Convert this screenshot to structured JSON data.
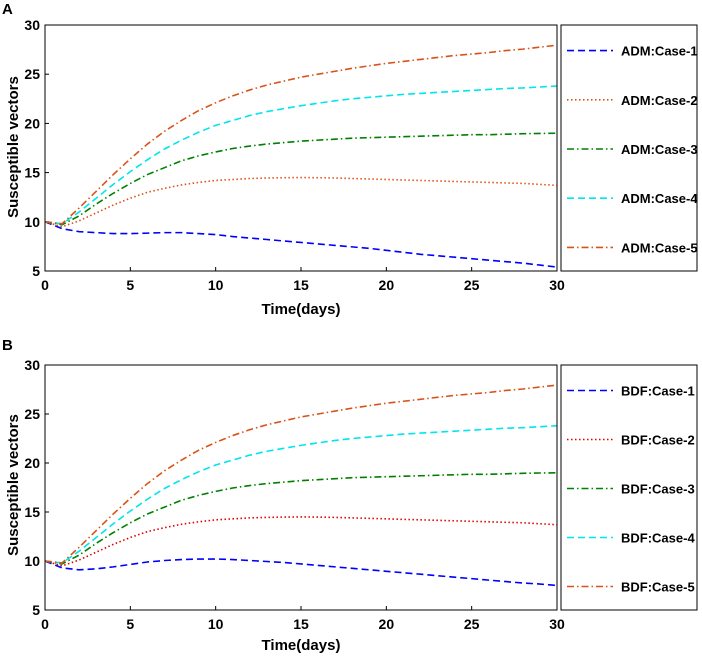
{
  "chart_data": [
    {
      "type": "line",
      "panel": "A",
      "xlabel": "Time(days)",
      "ylabel": "Susceptible vectors",
      "xlim": [
        0,
        30
      ],
      "ylim": [
        5,
        30
      ],
      "xticks": [
        "0",
        "5",
        "10",
        "15",
        "20",
        "25",
        "30"
      ],
      "yticks": [
        "5",
        "10",
        "15",
        "20",
        "25",
        "30"
      ],
      "legend_position": "right",
      "x": [
        0,
        1,
        2,
        3,
        4,
        5,
        6,
        7,
        8,
        9,
        10,
        11,
        12,
        13,
        14,
        15,
        16,
        17,
        18,
        19,
        20,
        21,
        22,
        23,
        24,
        25,
        26,
        27,
        28,
        29,
        30
      ],
      "series": [
        {
          "name": "ADM:Case-1",
          "color": "#0000ff",
          "dash": "dashed",
          "values": [
            10,
            9.3,
            9.0,
            8.9,
            8.8,
            8.8,
            8.85,
            8.9,
            8.9,
            8.8,
            8.7,
            8.5,
            8.35,
            8.2,
            8.05,
            7.9,
            7.75,
            7.6,
            7.45,
            7.3,
            7.1,
            6.9,
            6.7,
            6.55,
            6.4,
            6.25,
            6.1,
            5.95,
            5.8,
            5.6,
            5.4
          ]
        },
        {
          "name": "ADM:Case-2",
          "color": "#d95319",
          "dash": "dotted",
          "values": [
            10,
            9.5,
            10.1,
            10.9,
            11.7,
            12.4,
            13.0,
            13.4,
            13.75,
            14.0,
            14.2,
            14.3,
            14.4,
            14.45,
            14.48,
            14.5,
            14.48,
            14.45,
            14.4,
            14.35,
            14.3,
            14.25,
            14.2,
            14.15,
            14.1,
            14.05,
            14.0,
            13.95,
            13.9,
            13.8,
            13.7
          ]
        },
        {
          "name": "ADM:Case-3",
          "color": "#008000",
          "dash": "dashdot",
          "values": [
            10,
            9.7,
            10.6,
            11.8,
            12.9,
            13.9,
            14.8,
            15.5,
            16.2,
            16.7,
            17.1,
            17.45,
            17.7,
            17.9,
            18.05,
            18.2,
            18.3,
            18.4,
            18.5,
            18.55,
            18.6,
            18.65,
            18.7,
            18.75,
            18.8,
            18.85,
            18.85,
            18.9,
            18.95,
            18.98,
            19.0
          ]
        },
        {
          "name": "ADM:Case-4",
          "color": "#00e5ee",
          "dash": "dashed",
          "values": [
            10,
            9.8,
            11.0,
            12.4,
            13.8,
            15.1,
            16.3,
            17.4,
            18.3,
            19.1,
            19.8,
            20.3,
            20.8,
            21.2,
            21.5,
            21.8,
            22.05,
            22.3,
            22.5,
            22.65,
            22.8,
            22.95,
            23.05,
            23.15,
            23.25,
            23.35,
            23.45,
            23.55,
            23.6,
            23.7,
            23.8
          ]
        },
        {
          "name": "ADM:Case-5",
          "color": "#d95319",
          "dash": "dashdot",
          "values": [
            10,
            9.8,
            11.4,
            13.1,
            14.8,
            16.4,
            17.9,
            19.2,
            20.3,
            21.3,
            22.1,
            22.8,
            23.4,
            23.9,
            24.3,
            24.7,
            25.0,
            25.3,
            25.6,
            25.85,
            26.1,
            26.3,
            26.5,
            26.7,
            26.9,
            27.05,
            27.2,
            27.4,
            27.55,
            27.75,
            27.95
          ]
        }
      ]
    },
    {
      "type": "line",
      "panel": "B",
      "xlabel": "Time(days)",
      "ylabel": "Susceptible vectors",
      "xlim": [
        0,
        30
      ],
      "ylim": [
        5,
        30
      ],
      "xticks": [
        "0",
        "5",
        "10",
        "15",
        "20",
        "25",
        "30"
      ],
      "yticks": [
        "5",
        "10",
        "15",
        "20",
        "25",
        "30"
      ],
      "legend_position": "right",
      "x": [
        0,
        1,
        2,
        3,
        4,
        5,
        6,
        7,
        8,
        9,
        10,
        11,
        12,
        13,
        14,
        15,
        16,
        17,
        18,
        19,
        20,
        21,
        22,
        23,
        24,
        25,
        26,
        27,
        28,
        29,
        30
      ],
      "series": [
        {
          "name": "BDF:Case-1",
          "color": "#0000ff",
          "dash": "dashed",
          "values": [
            10,
            9.3,
            9.1,
            9.2,
            9.4,
            9.65,
            9.9,
            10.05,
            10.15,
            10.2,
            10.2,
            10.15,
            10.05,
            9.95,
            9.85,
            9.7,
            9.55,
            9.4,
            9.25,
            9.1,
            8.95,
            8.8,
            8.65,
            8.5,
            8.35,
            8.2,
            8.05,
            7.9,
            7.75,
            7.65,
            7.5
          ]
        },
        {
          "name": "BDF:Case-2",
          "color": "#e00000",
          "dash": "dotted",
          "values": [
            10,
            9.5,
            10.1,
            10.9,
            11.7,
            12.4,
            13.0,
            13.4,
            13.75,
            14.0,
            14.2,
            14.3,
            14.4,
            14.45,
            14.48,
            14.5,
            14.48,
            14.45,
            14.4,
            14.35,
            14.3,
            14.25,
            14.2,
            14.15,
            14.1,
            14.05,
            14.0,
            13.95,
            13.9,
            13.8,
            13.7
          ]
        },
        {
          "name": "BDF:Case-3",
          "color": "#008000",
          "dash": "dashdot",
          "values": [
            10,
            9.7,
            10.6,
            11.8,
            12.9,
            13.9,
            14.8,
            15.5,
            16.2,
            16.7,
            17.1,
            17.45,
            17.7,
            17.9,
            18.05,
            18.2,
            18.3,
            18.4,
            18.5,
            18.55,
            18.6,
            18.65,
            18.7,
            18.75,
            18.8,
            18.85,
            18.85,
            18.9,
            18.95,
            18.98,
            19.0
          ]
        },
        {
          "name": "BDF:Case-4",
          "color": "#00e5ee",
          "dash": "dashed",
          "values": [
            10,
            9.8,
            11.0,
            12.4,
            13.8,
            15.1,
            16.3,
            17.4,
            18.3,
            19.1,
            19.8,
            20.3,
            20.8,
            21.2,
            21.5,
            21.8,
            22.05,
            22.3,
            22.5,
            22.65,
            22.8,
            22.95,
            23.05,
            23.15,
            23.25,
            23.35,
            23.45,
            23.55,
            23.6,
            23.7,
            23.8
          ]
        },
        {
          "name": "BDF:Case-5",
          "color": "#d95319",
          "dash": "dashdot",
          "values": [
            10,
            9.8,
            11.4,
            13.1,
            14.8,
            16.4,
            17.9,
            19.2,
            20.3,
            21.3,
            22.1,
            22.8,
            23.4,
            23.9,
            24.3,
            24.7,
            25.0,
            25.3,
            25.6,
            25.85,
            26.1,
            26.3,
            26.5,
            26.7,
            26.9,
            27.05,
            27.2,
            27.4,
            27.55,
            27.75,
            27.95
          ]
        }
      ]
    }
  ]
}
